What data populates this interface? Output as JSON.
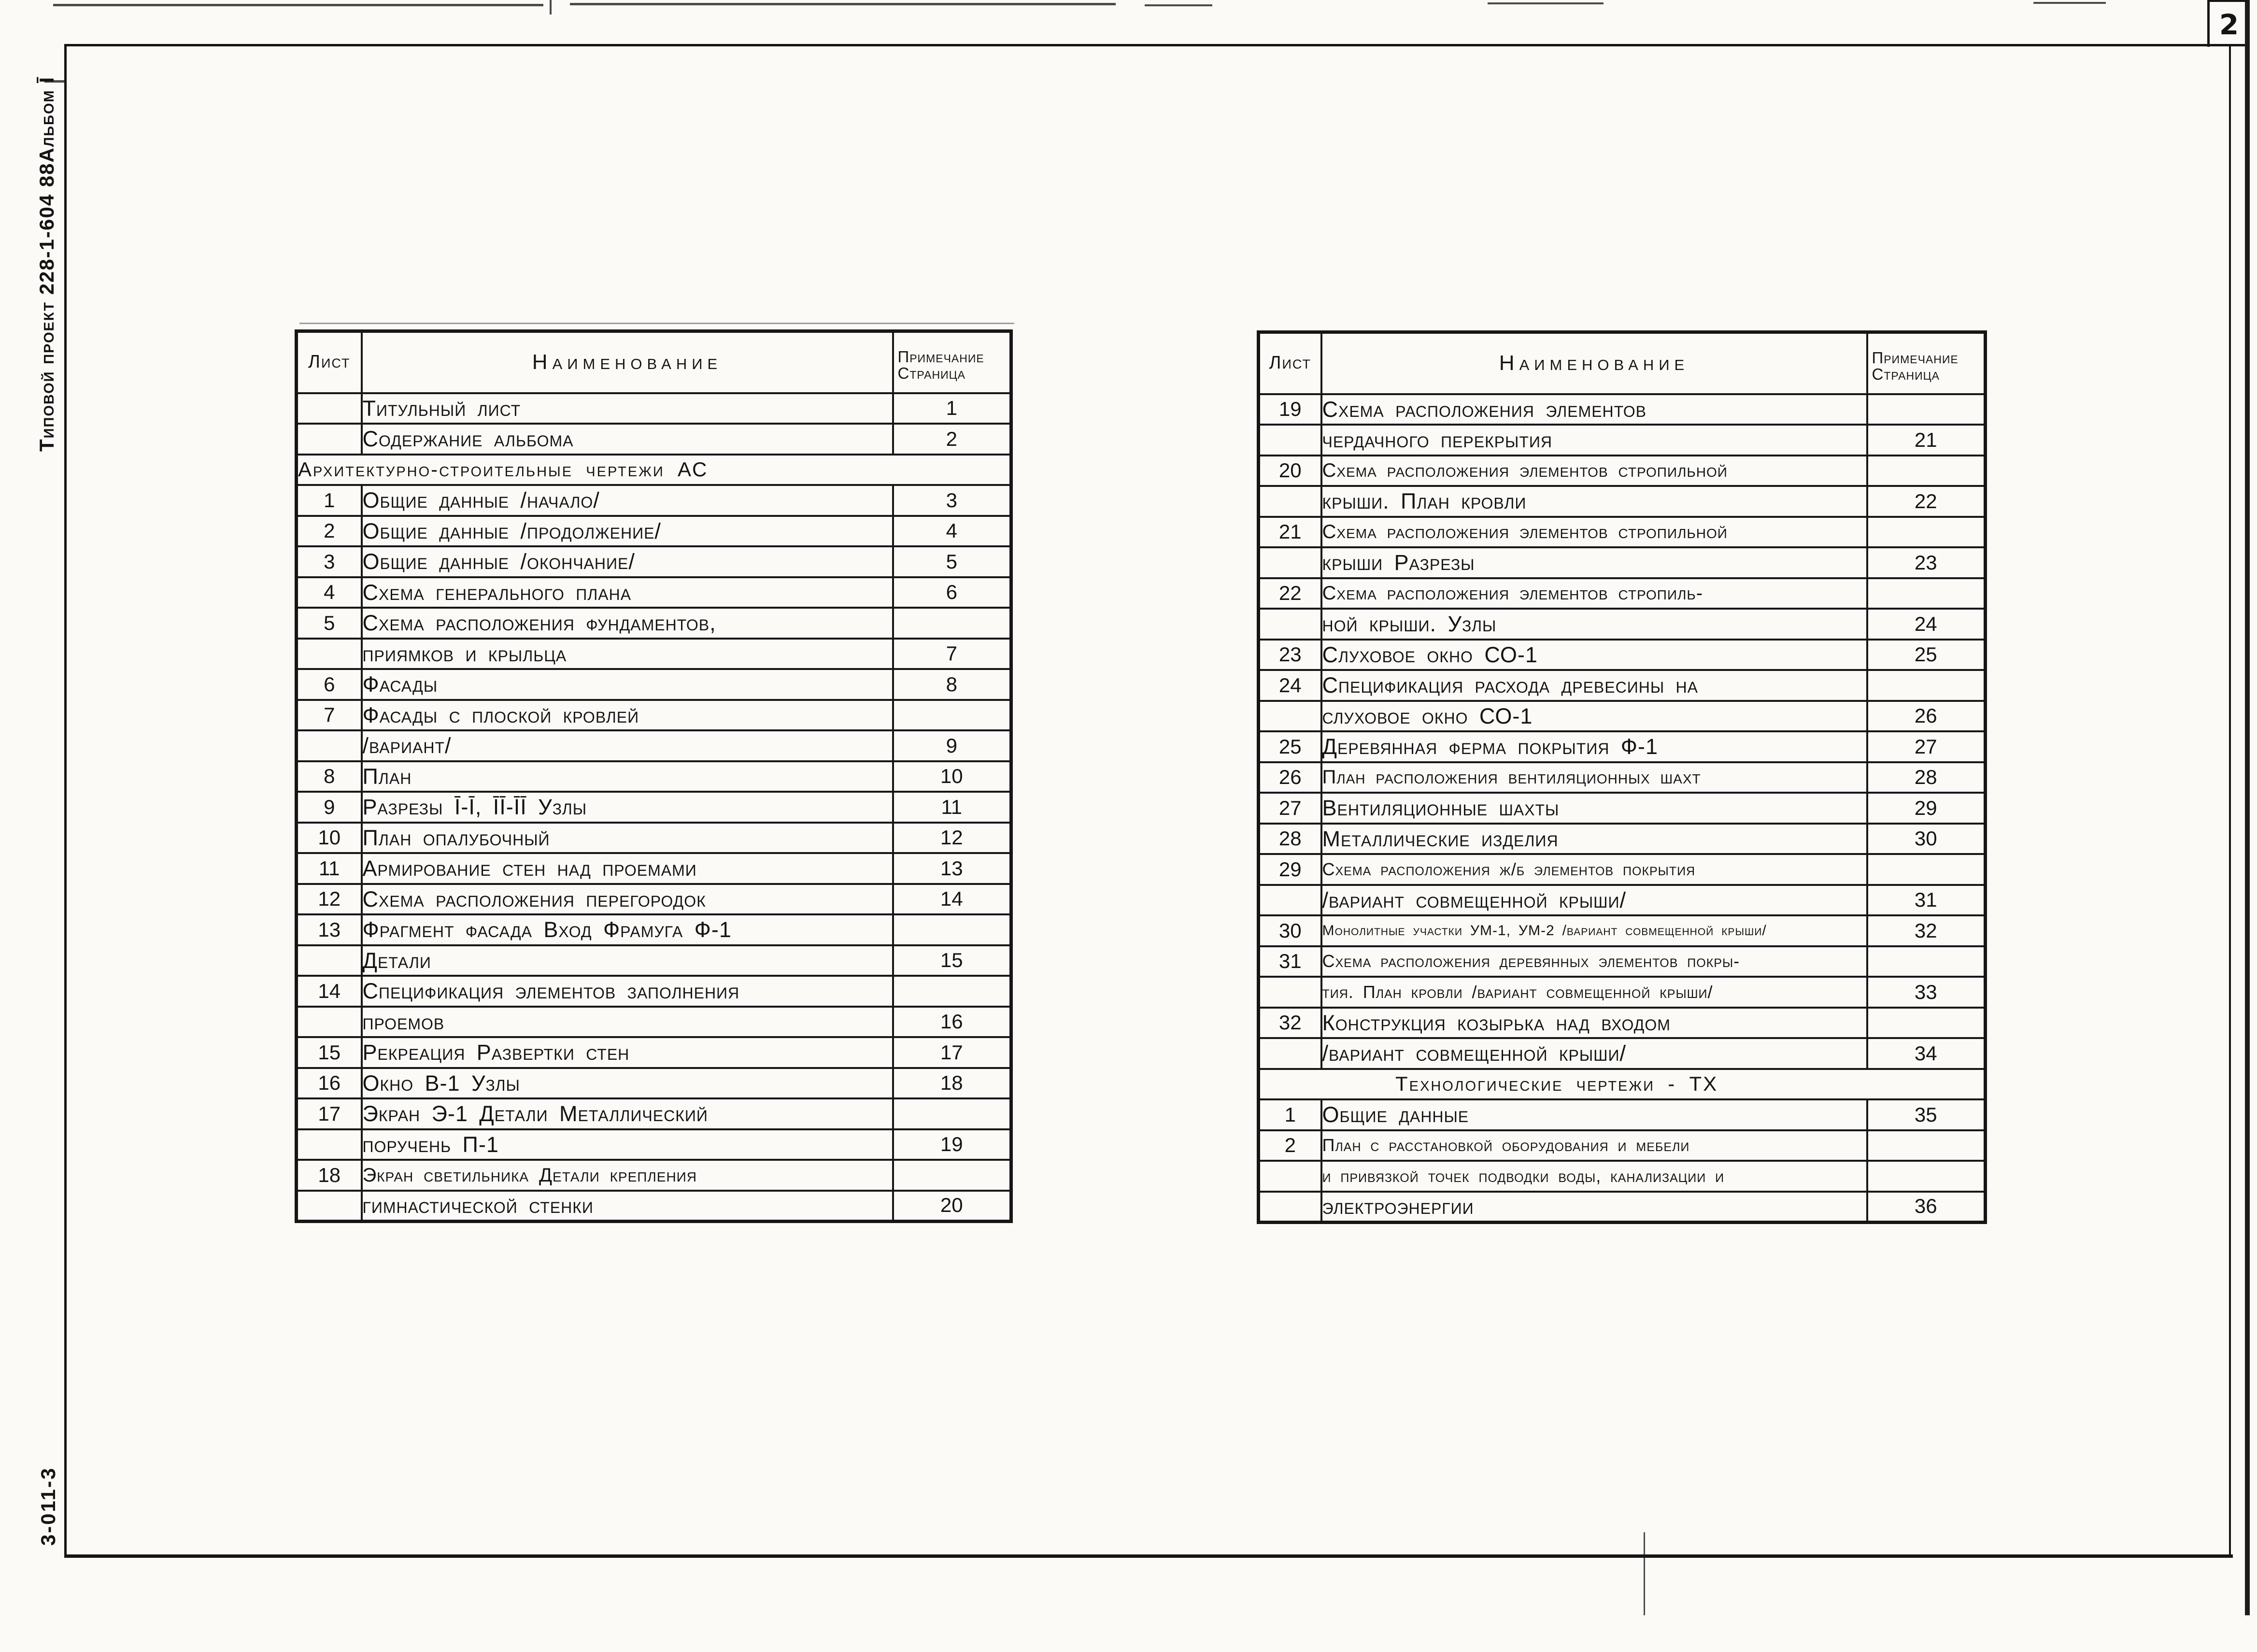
{
  "page": {
    "number": "2"
  },
  "margin": {
    "project_code": "Типовой проект 228-1-604 88",
    "album": "Альбом Ī",
    "stamp": "3-011-3"
  },
  "columns": {
    "sheet": "Лист",
    "name": "Наименование",
    "note1": "Примечание",
    "note2": "Страница"
  },
  "tables": {
    "left": {
      "rows": [
        {
          "s": "",
          "n": "Титульный лист",
          "p": "1"
        },
        {
          "s": "",
          "n": "Содержание альбома",
          "p": "2"
        },
        {
          "t": "s",
          "n": "Архитектурно-строительные чертежи АС"
        },
        {
          "s": "1",
          "n": "Общие данные /начало/",
          "p": "3"
        },
        {
          "s": "2",
          "n": "Общие данные /продолжение/",
          "p": "4"
        },
        {
          "s": "3",
          "n": "Общие данные /окончание/",
          "p": "5"
        },
        {
          "s": "4",
          "n": "Схема генерального плана",
          "p": "6"
        },
        {
          "s": "5",
          "n": "Схема расположения фундаментов,",
          "p": ""
        },
        {
          "s": "",
          "n": "приямков и крыльца",
          "p": "7"
        },
        {
          "s": "6",
          "n": "Фасады",
          "p": "8"
        },
        {
          "s": "7",
          "n": "Фасады с плоской кровлей",
          "p": ""
        },
        {
          "s": "",
          "n": "/вариант/",
          "p": "9"
        },
        {
          "s": "8",
          "n": "План",
          "p": "10"
        },
        {
          "s": "9",
          "n": "Разрезы Ī-Ī, ĪĪ-ĪĪ Узлы",
          "p": "11"
        },
        {
          "s": "10",
          "n": "План опалубочный",
          "p": "12"
        },
        {
          "s": "11",
          "n": "Армирование стен над проемами",
          "p": "13"
        },
        {
          "s": "12",
          "n": "Схема расположения перегородок",
          "p": "14"
        },
        {
          "s": "13",
          "n": "Фрагмент фасада Вход Фрамуга Ф-1",
          "p": ""
        },
        {
          "s": "",
          "n": "Детали",
          "p": "15"
        },
        {
          "s": "14",
          "n": "Спецификация элементов заполнения",
          "p": ""
        },
        {
          "s": "",
          "n": "проемов",
          "p": "16"
        },
        {
          "s": "15",
          "n": "Рекреация Развертки стен",
          "p": "17"
        },
        {
          "s": "16",
          "n": "Окно В-1 Узлы",
          "p": "18"
        },
        {
          "s": "17",
          "n": "Экран Э-1 Детали Металлический",
          "p": ""
        },
        {
          "s": "",
          "n": "поручень П-1",
          "p": "19"
        },
        {
          "s": "18",
          "n": "Экран светильника Детали крепления",
          "p": ""
        },
        {
          "s": "",
          "n": "гимнастической стенки",
          "p": "20"
        }
      ]
    },
    "right": {
      "rows": [
        {
          "s": "19",
          "n": "Схема расположения элементов",
          "p": ""
        },
        {
          "s": "",
          "n": "чердачного перекрытия",
          "p": "21"
        },
        {
          "s": "20",
          "n": "Схема расположения элементов стропильной",
          "p": ""
        },
        {
          "s": "",
          "n": "крыши. План кровли",
          "p": "22"
        },
        {
          "s": "21",
          "n": "Схема расположения элементов стропильной",
          "p": ""
        },
        {
          "s": "",
          "n": "крыши Разрезы",
          "p": "23"
        },
        {
          "s": "22",
          "n": "Схема расположения элементов стропиль-",
          "p": ""
        },
        {
          "s": "",
          "n": "ной крыши. Узлы",
          "p": "24"
        },
        {
          "s": "23",
          "n": "Слуховое окно СО-1",
          "p": "25"
        },
        {
          "s": "24",
          "n": "Спецификация расхода древесины на",
          "p": ""
        },
        {
          "s": "",
          "n": "слуховое окно СО-1",
          "p": "26"
        },
        {
          "s": "25",
          "n": "Деревянная ферма покрытия Ф-1",
          "p": "27"
        },
        {
          "s": "26",
          "n": "План расположения вентиляционных шахт",
          "p": "28"
        },
        {
          "s": "27",
          "n": "Вентиляционные шахты",
          "p": "29"
        },
        {
          "s": "28",
          "n": "Металлические изделия",
          "p": "30"
        },
        {
          "s": "29",
          "n": "Схема расположения ж/б элементов покрытия",
          "p": ""
        },
        {
          "s": "",
          "n": "/вариант совмещенной крыши/",
          "p": "31"
        },
        {
          "s": "30",
          "n": "Монолитные участки УМ-1, УМ-2 /вариант совмещенной крыши/",
          "p": "32"
        },
        {
          "s": "31",
          "n": "Схема расположения деревянных элементов покры-",
          "p": ""
        },
        {
          "s": "",
          "n": "тия. План кровли /вариант совмещенной крыши/",
          "p": "33"
        },
        {
          "s": "32",
          "n": "Конструкция козырька над входом",
          "p": ""
        },
        {
          "s": "",
          "n": "/вариант совмещенной крыши/",
          "p": "34"
        },
        {
          "t": "s",
          "n": "Технологические чертежи - ТХ"
        },
        {
          "s": "1",
          "n": "Общие данные",
          "p": "35"
        },
        {
          "s": "2",
          "n": "План с расстановкой оборудования и мебели",
          "p": ""
        },
        {
          "s": "",
          "n": "и привязкой точек подводки воды, канализации и",
          "p": ""
        },
        {
          "s": "",
          "n": "электроэнергии",
          "p": "36"
        }
      ]
    }
  }
}
